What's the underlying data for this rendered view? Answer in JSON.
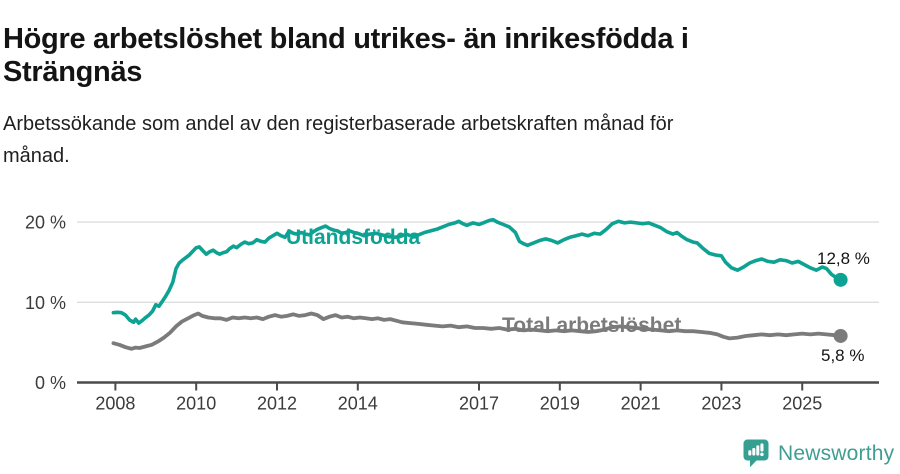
{
  "header": {
    "title": "Högre arbetslöshet bland utrikes- än inrikesfödda i Strängnäs",
    "title_lines": [
      "Högre arbetslöshet bland utrikes- än inrikesfödda i",
      "Strängnäs"
    ],
    "subtitle": "Arbetssökande som andel av den registerbaserade arbetskraften månad för månad.",
    "subtitle_lines": [
      "Arbetssökande som andel av den registerbaserade arbetskraften månad för",
      "månad."
    ]
  },
  "footer": {
    "brand": "Newsworthy",
    "brand_color": "#3f9e93",
    "icon": "bar-chart-speech-bubble-icon",
    "icon_color": "#35a092"
  },
  "colors": {
    "accent_teal": "#0ea293",
    "line_gray": "#7b7b7b",
    "gridline": "#dedede",
    "axis": "#4a4a4a",
    "tick_label": "#3c3c3c",
    "text": "#141414"
  },
  "chart_data": {
    "type": "line",
    "title": "Högre arbetslöshet bland utrikes- än inrikesfödda i Strängnäs",
    "subtitle": "Arbetssökande som andel av den registerbaserade arbetskraften månad för månad.",
    "unit": "%",
    "grid": "horizontal",
    "legend_position": "inline-labels",
    "xlim": [
      2007.05,
      2026.9
    ],
    "ylim": [
      0,
      24
    ],
    "x_ticks": [
      {
        "year": 2008,
        "label": "2008"
      },
      {
        "year": 2010,
        "label": "2010"
      },
      {
        "year": 2012,
        "label": "2012"
      },
      {
        "year": 2014,
        "label": "2014"
      },
      {
        "year": 2017,
        "label": "2017"
      },
      {
        "year": 2019,
        "label": "2019"
      },
      {
        "year": 2021,
        "label": "2021"
      },
      {
        "year": 2023,
        "label": "2023"
      },
      {
        "year": 2025,
        "label": "2025"
      }
    ],
    "y_ticks": [
      {
        "value": 0,
        "label": "0 %"
      },
      {
        "value": 10,
        "label": "10 %"
      },
      {
        "value": 20,
        "label": "20 %"
      }
    ],
    "series": [
      {
        "name": "Utlandsfödda",
        "color": "#0ea293",
        "end_value": 12.8,
        "end_label": "12,8 %",
        "points": [
          [
            2007.95,
            8.7
          ],
          [
            2008.05,
            8.75
          ],
          [
            2008.15,
            8.7
          ],
          [
            2008.25,
            8.4
          ],
          [
            2008.35,
            7.8
          ],
          [
            2008.45,
            7.5
          ],
          [
            2008.5,
            7.9
          ],
          [
            2008.58,
            7.4
          ],
          [
            2008.66,
            7.7
          ],
          [
            2008.75,
            8.1
          ],
          [
            2008.83,
            8.4
          ],
          [
            2008.92,
            8.9
          ],
          [
            2009.0,
            9.7
          ],
          [
            2009.08,
            9.5
          ],
          [
            2009.17,
            10.2
          ],
          [
            2009.25,
            10.8
          ],
          [
            2009.33,
            11.5
          ],
          [
            2009.42,
            12.5
          ],
          [
            2009.5,
            14.2
          ],
          [
            2009.58,
            14.9
          ],
          [
            2009.67,
            15.3
          ],
          [
            2009.75,
            15.6
          ],
          [
            2009.83,
            15.9
          ],
          [
            2009.92,
            16.4
          ],
          [
            2010.0,
            16.8
          ],
          [
            2010.08,
            16.9
          ],
          [
            2010.17,
            16.4
          ],
          [
            2010.25,
            16.0
          ],
          [
            2010.33,
            16.3
          ],
          [
            2010.42,
            16.5
          ],
          [
            2010.5,
            16.2
          ],
          [
            2010.58,
            16.0
          ],
          [
            2010.67,
            16.2
          ],
          [
            2010.75,
            16.3
          ],
          [
            2010.83,
            16.7
          ],
          [
            2010.92,
            17.0
          ],
          [
            2011.0,
            16.8
          ],
          [
            2011.1,
            17.2
          ],
          [
            2011.2,
            17.5
          ],
          [
            2011.3,
            17.3
          ],
          [
            2011.4,
            17.4
          ],
          [
            2011.5,
            17.8
          ],
          [
            2011.6,
            17.6
          ],
          [
            2011.7,
            17.5
          ],
          [
            2011.8,
            18.0
          ],
          [
            2011.9,
            18.3
          ],
          [
            2012.0,
            18.6
          ],
          [
            2012.1,
            18.3
          ],
          [
            2012.2,
            18.1
          ],
          [
            2012.3,
            18.9
          ],
          [
            2012.4,
            18.6
          ],
          [
            2012.5,
            18.5
          ],
          [
            2012.6,
            18.7
          ],
          [
            2012.7,
            18.5
          ],
          [
            2012.8,
            18.4
          ],
          [
            2012.9,
            18.8
          ],
          [
            2013.0,
            19.1
          ],
          [
            2013.1,
            19.3
          ],
          [
            2013.2,
            19.5
          ],
          [
            2013.3,
            19.2
          ],
          [
            2013.4,
            19.0
          ],
          [
            2013.5,
            18.9
          ],
          [
            2013.6,
            18.6
          ],
          [
            2013.7,
            18.7
          ],
          [
            2013.8,
            18.9
          ],
          [
            2013.9,
            18.7
          ],
          [
            2014.0,
            18.6
          ],
          [
            2014.15,
            18.3
          ],
          [
            2014.3,
            18.5
          ],
          [
            2014.45,
            18.6
          ],
          [
            2014.6,
            18.4
          ],
          [
            2014.75,
            18.2
          ],
          [
            2014.9,
            18.1
          ],
          [
            2015.05,
            18.2
          ],
          [
            2015.2,
            18.5
          ],
          [
            2015.35,
            18.2
          ],
          [
            2015.5,
            18.4
          ],
          [
            2015.65,
            18.7
          ],
          [
            2015.8,
            18.9
          ],
          [
            2015.95,
            19.1
          ],
          [
            2016.1,
            19.4
          ],
          [
            2016.25,
            19.7
          ],
          [
            2016.4,
            19.9
          ],
          [
            2016.5,
            20.1
          ],
          [
            2016.6,
            19.8
          ],
          [
            2016.7,
            19.6
          ],
          [
            2016.85,
            19.9
          ],
          [
            2017.0,
            19.7
          ],
          [
            2017.1,
            19.9
          ],
          [
            2017.25,
            20.2
          ],
          [
            2017.35,
            20.3
          ],
          [
            2017.45,
            20.0
          ],
          [
            2017.6,
            19.7
          ],
          [
            2017.75,
            19.4
          ],
          [
            2017.9,
            18.7
          ],
          [
            2018.0,
            17.6
          ],
          [
            2018.1,
            17.3
          ],
          [
            2018.2,
            17.1
          ],
          [
            2018.35,
            17.4
          ],
          [
            2018.5,
            17.7
          ],
          [
            2018.65,
            17.9
          ],
          [
            2018.8,
            17.7
          ],
          [
            2018.95,
            17.4
          ],
          [
            2019.1,
            17.8
          ],
          [
            2019.25,
            18.1
          ],
          [
            2019.4,
            18.3
          ],
          [
            2019.55,
            18.5
          ],
          [
            2019.7,
            18.3
          ],
          [
            2019.85,
            18.6
          ],
          [
            2020.0,
            18.5
          ],
          [
            2020.15,
            19.1
          ],
          [
            2020.3,
            19.8
          ],
          [
            2020.45,
            20.1
          ],
          [
            2020.6,
            19.9
          ],
          [
            2020.75,
            20.0
          ],
          [
            2020.9,
            19.9
          ],
          [
            2021.05,
            19.8
          ],
          [
            2021.2,
            19.9
          ],
          [
            2021.35,
            19.6
          ],
          [
            2021.5,
            19.3
          ],
          [
            2021.65,
            18.8
          ],
          [
            2021.8,
            18.5
          ],
          [
            2021.9,
            18.7
          ],
          [
            2022.0,
            18.3
          ],
          [
            2022.15,
            17.8
          ],
          [
            2022.3,
            17.5
          ],
          [
            2022.4,
            17.4
          ],
          [
            2022.55,
            16.7
          ],
          [
            2022.7,
            16.1
          ],
          [
            2022.85,
            15.9
          ],
          [
            2023.0,
            15.8
          ],
          [
            2023.1,
            15.0
          ],
          [
            2023.25,
            14.3
          ],
          [
            2023.4,
            14.0
          ],
          [
            2023.55,
            14.4
          ],
          [
            2023.7,
            14.9
          ],
          [
            2023.85,
            15.2
          ],
          [
            2024.0,
            15.4
          ],
          [
            2024.15,
            15.1
          ],
          [
            2024.3,
            15.0
          ],
          [
            2024.45,
            15.3
          ],
          [
            2024.6,
            15.2
          ],
          [
            2024.75,
            14.9
          ],
          [
            2024.9,
            15.1
          ],
          [
            2025.05,
            14.7
          ],
          [
            2025.2,
            14.3
          ],
          [
            2025.35,
            14.0
          ],
          [
            2025.5,
            14.4
          ],
          [
            2025.6,
            14.2
          ],
          [
            2025.72,
            13.5
          ],
          [
            2025.83,
            13.1
          ],
          [
            2025.95,
            12.8
          ]
        ]
      },
      {
        "name": "Total arbetslöshet",
        "color": "#7b7b7b",
        "end_value": 5.8,
        "end_label": "5,8 %",
        "points": [
          [
            2007.95,
            4.9
          ],
          [
            2008.1,
            4.7
          ],
          [
            2008.25,
            4.4
          ],
          [
            2008.4,
            4.2
          ],
          [
            2008.5,
            4.35
          ],
          [
            2008.6,
            4.3
          ],
          [
            2008.75,
            4.5
          ],
          [
            2008.9,
            4.7
          ],
          [
            2009.05,
            5.1
          ],
          [
            2009.2,
            5.6
          ],
          [
            2009.35,
            6.2
          ],
          [
            2009.5,
            7.0
          ],
          [
            2009.65,
            7.6
          ],
          [
            2009.8,
            8.0
          ],
          [
            2009.95,
            8.4
          ],
          [
            2010.05,
            8.6
          ],
          [
            2010.15,
            8.3
          ],
          [
            2010.3,
            8.1
          ],
          [
            2010.45,
            8.0
          ],
          [
            2010.6,
            8.0
          ],
          [
            2010.75,
            7.8
          ],
          [
            2010.9,
            8.1
          ],
          [
            2011.05,
            8.0
          ],
          [
            2011.2,
            8.1
          ],
          [
            2011.35,
            8.0
          ],
          [
            2011.5,
            8.1
          ],
          [
            2011.65,
            7.9
          ],
          [
            2011.8,
            8.2
          ],
          [
            2011.95,
            8.4
          ],
          [
            2012.1,
            8.2
          ],
          [
            2012.25,
            8.3
          ],
          [
            2012.4,
            8.5
          ],
          [
            2012.55,
            8.3
          ],
          [
            2012.7,
            8.4
          ],
          [
            2012.85,
            8.6
          ],
          [
            2013.0,
            8.4
          ],
          [
            2013.15,
            7.9
          ],
          [
            2013.3,
            8.2
          ],
          [
            2013.45,
            8.4
          ],
          [
            2013.6,
            8.1
          ],
          [
            2013.75,
            8.2
          ],
          [
            2013.9,
            8.0
          ],
          [
            2014.05,
            8.1
          ],
          [
            2014.2,
            8.0
          ],
          [
            2014.35,
            7.9
          ],
          [
            2014.5,
            8.0
          ],
          [
            2014.65,
            7.8
          ],
          [
            2014.8,
            7.9
          ],
          [
            2014.95,
            7.7
          ],
          [
            2015.1,
            7.5
          ],
          [
            2015.3,
            7.4
          ],
          [
            2015.5,
            7.3
          ],
          [
            2015.7,
            7.2
          ],
          [
            2015.9,
            7.1
          ],
          [
            2016.1,
            7.0
          ],
          [
            2016.3,
            7.1
          ],
          [
            2016.5,
            6.9
          ],
          [
            2016.7,
            7.0
          ],
          [
            2016.9,
            6.8
          ],
          [
            2017.1,
            6.8
          ],
          [
            2017.3,
            6.7
          ],
          [
            2017.5,
            6.8
          ],
          [
            2017.7,
            6.6
          ],
          [
            2017.9,
            6.7
          ],
          [
            2018.1,
            6.5
          ],
          [
            2018.3,
            6.6
          ],
          [
            2018.5,
            6.5
          ],
          [
            2018.7,
            6.4
          ],
          [
            2018.9,
            6.5
          ],
          [
            2019.1,
            6.4
          ],
          [
            2019.3,
            6.5
          ],
          [
            2019.5,
            6.4
          ],
          [
            2019.7,
            6.3
          ],
          [
            2019.9,
            6.4
          ],
          [
            2020.1,
            6.6
          ],
          [
            2020.3,
            6.9
          ],
          [
            2020.5,
            7.0
          ],
          [
            2020.7,
            6.9
          ],
          [
            2020.9,
            6.8
          ],
          [
            2021.1,
            6.7
          ],
          [
            2021.3,
            6.6
          ],
          [
            2021.5,
            6.5
          ],
          [
            2021.7,
            6.4
          ],
          [
            2021.9,
            6.5
          ],
          [
            2022.1,
            6.4
          ],
          [
            2022.3,
            6.4
          ],
          [
            2022.5,
            6.3
          ],
          [
            2022.7,
            6.2
          ],
          [
            2022.9,
            6.0
          ],
          [
            2023.05,
            5.7
          ],
          [
            2023.2,
            5.5
          ],
          [
            2023.4,
            5.6
          ],
          [
            2023.6,
            5.8
          ],
          [
            2023.8,
            5.9
          ],
          [
            2024.0,
            6.0
          ],
          [
            2024.2,
            5.9
          ],
          [
            2024.4,
            6.0
          ],
          [
            2024.6,
            5.9
          ],
          [
            2024.8,
            6.0
          ],
          [
            2025.0,
            6.1
          ],
          [
            2025.2,
            6.0
          ],
          [
            2025.4,
            6.1
          ],
          [
            2025.6,
            6.0
          ],
          [
            2025.8,
            5.9
          ],
          [
            2025.95,
            5.8
          ]
        ]
      }
    ]
  }
}
